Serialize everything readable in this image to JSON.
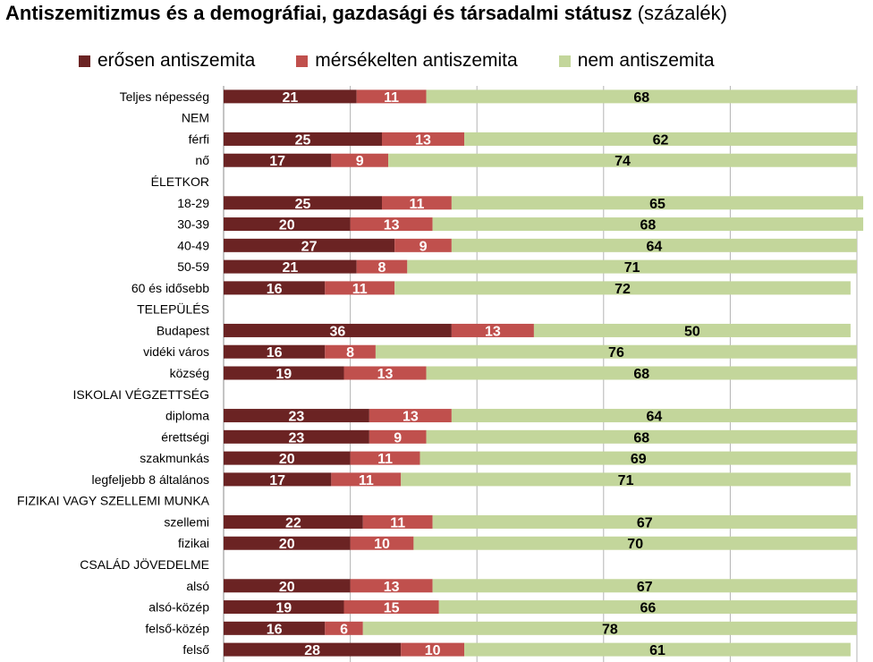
{
  "title": {
    "bold": "Antiszemitizmus és a demográfiai, gazdasági és társadalmi státusz",
    "normal": "(százalék)"
  },
  "chart_data": {
    "type": "bar",
    "orientation": "horizontal",
    "stacked": true,
    "xlim": [
      0,
      100
    ],
    "grid": true,
    "legend_position": "top",
    "categories": [
      "Teljes népesség",
      "NEM",
      "férfi",
      "nő",
      "ÉLETKOR",
      "18-29",
      "30-39",
      "40-49",
      "50-59",
      "60 és idősebb",
      "TELEPÜLÉS",
      "Budapest",
      "vidéki város",
      "község",
      "ISKOLAI VÉGZETTSÉG",
      "diploma",
      "érettségi",
      "szakmunkás",
      "legfeljebb 8 általános",
      "FIZIKAI VAGY SZELLEMI MUNKA",
      "szellemi",
      "fizikai",
      "CSALÁD JÖVEDELME",
      "alsó",
      "alsó-közép",
      "felső-közép",
      "felső"
    ],
    "series": [
      {
        "name": "erősen antiszemita",
        "color": "#6b2323",
        "label_color": "#ffffff",
        "values": [
          21,
          null,
          25,
          17,
          null,
          25,
          20,
          27,
          21,
          16,
          null,
          36,
          16,
          19,
          null,
          23,
          23,
          20,
          17,
          null,
          22,
          20,
          null,
          20,
          19,
          16,
          28
        ]
      },
      {
        "name": "mérsékelten antiszemita",
        "color": "#c0504d",
        "label_color": "#ffffff",
        "values": [
          11,
          null,
          13,
          9,
          null,
          11,
          13,
          9,
          8,
          11,
          null,
          13,
          8,
          13,
          null,
          13,
          9,
          11,
          11,
          null,
          11,
          10,
          null,
          13,
          15,
          6,
          10
        ]
      },
      {
        "name": "nem antiszemita",
        "color": "#c3d69b",
        "label_color": "#000000",
        "values": [
          68,
          null,
          62,
          74,
          null,
          65,
          68,
          64,
          71,
          72,
          null,
          50,
          76,
          68,
          null,
          64,
          68,
          69,
          71,
          null,
          67,
          70,
          null,
          67,
          66,
          78,
          61
        ]
      }
    ]
  }
}
